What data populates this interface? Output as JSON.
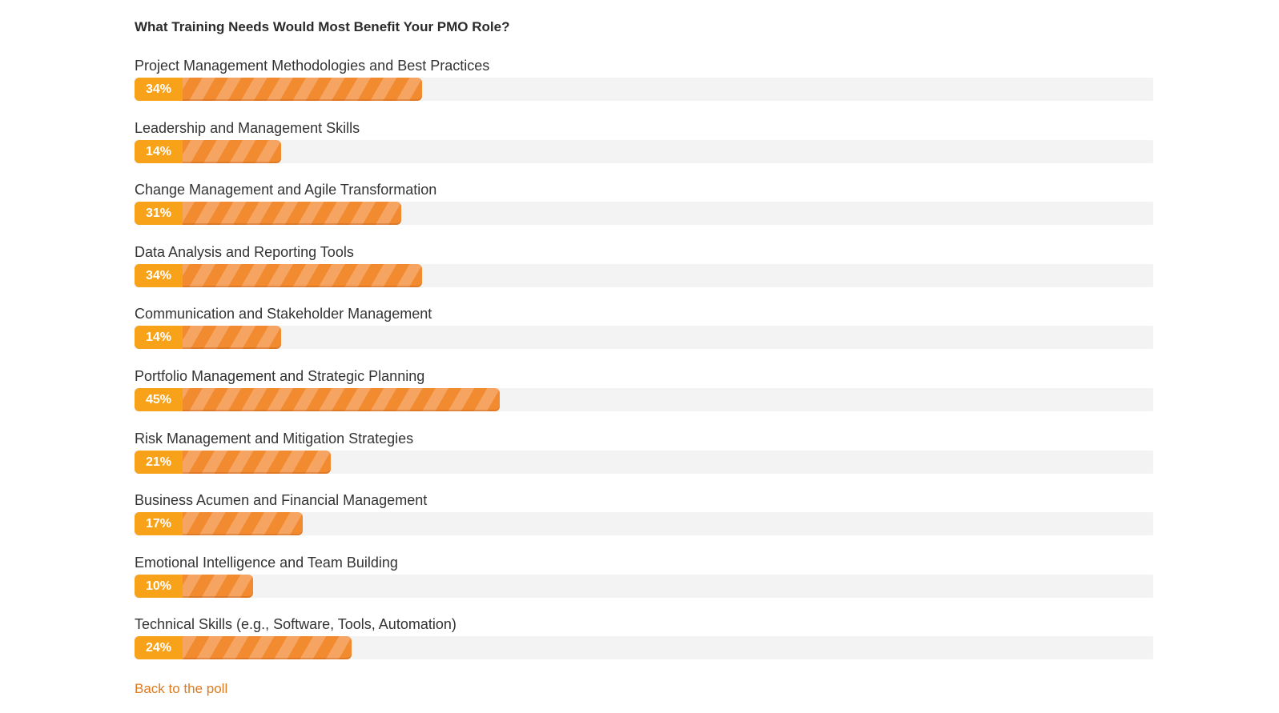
{
  "poll": {
    "title": "What Training Needs Would Most Benefit Your PMO Role?",
    "back_link_label": "Back to the poll"
  },
  "colors": {
    "bar_fill": "#f28a30",
    "bar_stripe": "#f6a462",
    "badge": "#f8a219",
    "track": "#f3f3f3",
    "link": "#e07a1f"
  },
  "options": [
    {
      "label": "Project Management Methodologies and Best Practices",
      "percent_label": "34%",
      "percent": 34
    },
    {
      "label": "Leadership and Management Skills",
      "percent_label": "14%",
      "percent": 14
    },
    {
      "label": "Change Management and Agile Transformation",
      "percent_label": "31%",
      "percent": 31
    },
    {
      "label": "Data Analysis and Reporting Tools",
      "percent_label": "34%",
      "percent": 34
    },
    {
      "label": "Communication and Stakeholder Management",
      "percent_label": "14%",
      "percent": 14
    },
    {
      "label": "Portfolio Management and Strategic Planning",
      "percent_label": "45%",
      "percent": 45
    },
    {
      "label": "Risk Management and Mitigation Strategies",
      "percent_label": "21%",
      "percent": 21
    },
    {
      "label": "Business Acumen and Financial Management",
      "percent_label": "17%",
      "percent": 17
    },
    {
      "label": "Emotional Intelligence and Team Building",
      "percent_label": "10%",
      "percent": 10
    },
    {
      "label": "Technical Skills (e.g., Software, Tools, Automation)",
      "percent_label": "24%",
      "percent": 24
    }
  ]
}
